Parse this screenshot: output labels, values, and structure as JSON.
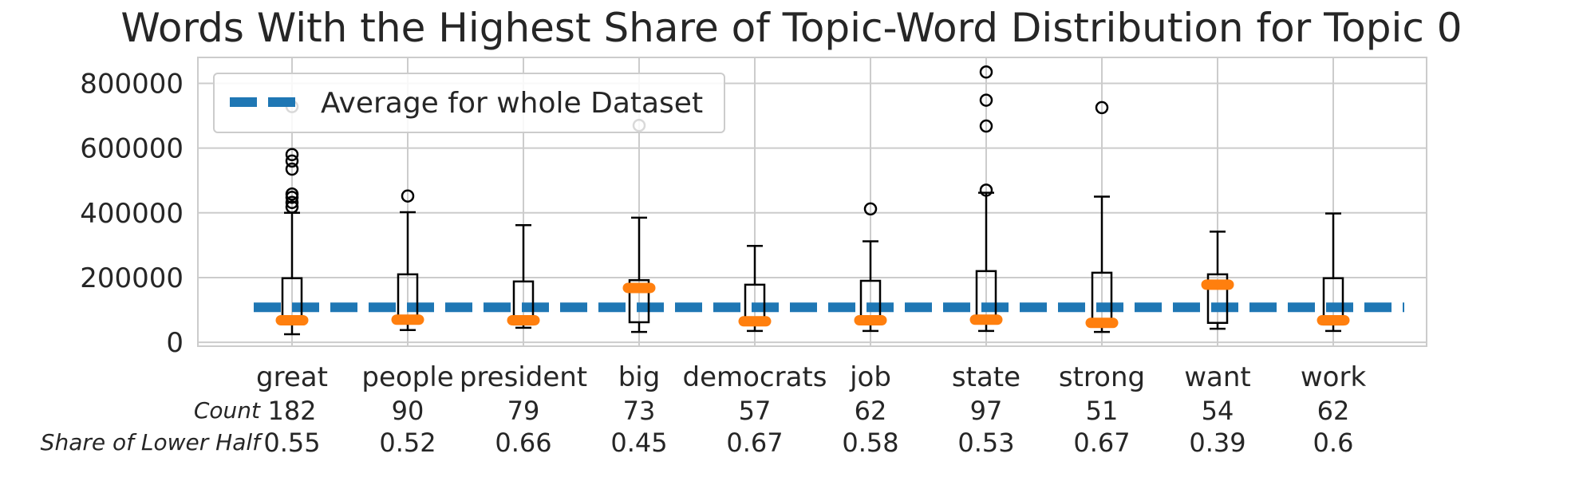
{
  "chart_data": {
    "type": "boxplot",
    "title": "Words With the Highest Share of Topic-Word Distribution for Topic 0",
    "ylim": [
      -12000,
      880000
    ],
    "yticks": [
      0,
      200000,
      400000,
      600000,
      800000
    ],
    "yticklabels": [
      "0",
      "200000",
      "400000",
      "600000",
      "800000"
    ],
    "grid": true,
    "legend": {
      "placement": "top-left",
      "label": "Average for whole Dataset"
    },
    "average_line": 108000,
    "colors": {
      "box": "#000000",
      "median": "#ff7f0e",
      "average": "#1f77b4",
      "grid": "#cccccc"
    },
    "categories": [
      "great",
      "people",
      "president",
      "big",
      "democrats",
      "job",
      "state",
      "strong",
      "want",
      "work"
    ],
    "boxes": [
      {
        "q1": 65000,
        "median": 68000,
        "q3": 198000,
        "whisker_low": 25000,
        "whisker_high": 400000,
        "outliers": [
          418000,
          432000,
          448000,
          458000,
          535000,
          560000,
          580000,
          728000
        ]
      },
      {
        "q1": 65000,
        "median": 70000,
        "q3": 210000,
        "whisker_low": 38000,
        "whisker_high": 402000,
        "outliers": [
          452000
        ]
      },
      {
        "q1": 55000,
        "median": 68000,
        "q3": 188000,
        "whisker_low": 45000,
        "whisker_high": 362000,
        "outliers": []
      },
      {
        "q1": 62000,
        "median": 168000,
        "q3": 192000,
        "whisker_low": 32000,
        "whisker_high": 385000,
        "outliers": [
          670000
        ]
      },
      {
        "q1": 58000,
        "median": 65000,
        "q3": 178000,
        "whisker_low": 35000,
        "whisker_high": 298000,
        "outliers": []
      },
      {
        "q1": 62000,
        "median": 68000,
        "q3": 190000,
        "whisker_low": 35000,
        "whisker_high": 312000,
        "outliers": [
          412000
        ]
      },
      {
        "q1": 62000,
        "median": 70000,
        "q3": 220000,
        "whisker_low": 35000,
        "whisker_high": 462000,
        "outliers": [
          470000,
          668000,
          748000,
          835000
        ]
      },
      {
        "q1": 55000,
        "median": 60000,
        "q3": 215000,
        "whisker_low": 32000,
        "whisker_high": 450000,
        "outliers": [
          725000
        ]
      },
      {
        "q1": 60000,
        "median": 178000,
        "q3": 210000,
        "whisker_low": 42000,
        "whisker_high": 342000,
        "outliers": []
      },
      {
        "q1": 55000,
        "median": 68000,
        "q3": 198000,
        "whisker_low": 35000,
        "whisker_high": 398000,
        "outliers": []
      }
    ],
    "rows": [
      {
        "label": "Count",
        "values": [
          "182",
          "90",
          "79",
          "73",
          "57",
          "62",
          "97",
          "51",
          "54",
          "62"
        ]
      },
      {
        "label": "Share of Lower Half",
        "values": [
          "0.55",
          "0.52",
          "0.66",
          "0.45",
          "0.67",
          "0.58",
          "0.53",
          "0.67",
          "0.39",
          "0.6"
        ]
      }
    ]
  }
}
